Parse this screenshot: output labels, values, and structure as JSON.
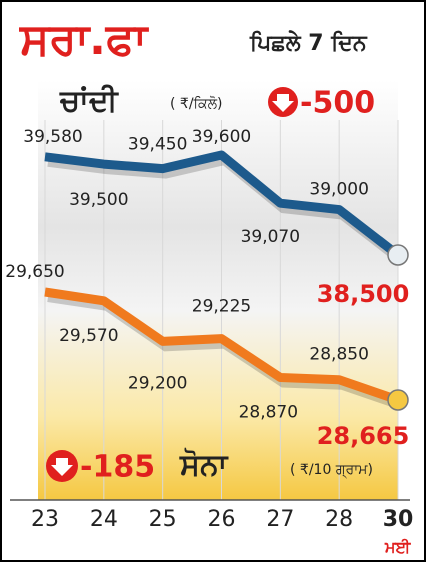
{
  "title": "ਸਰਾ.ਫਾ",
  "subtitle": "ਪਿਛਲੇ 7 ਦਿਨ",
  "chart_data": {
    "type": "line",
    "categories": [
      "23",
      "24",
      "25",
      "26",
      "27",
      "28",
      "30"
    ],
    "x_note": "ਮਈ",
    "series": [
      {
        "name": "ਚਾਂਦੀ",
        "unit": "( ₹/ਕਿਲੋ)",
        "change": -500,
        "color": "#1d5a8c",
        "values": [
          39580,
          39500,
          39450,
          39600,
          39070,
          39000,
          38500
        ],
        "value_labels": [
          "39,580",
          "39,500",
          "39,450",
          "39,600",
          "39,070",
          "39,000",
          "38,500"
        ]
      },
      {
        "name": "ਸੋਨਾ",
        "unit": "( ₹/10 ਗ੍ਰਾਮ)",
        "change": -185,
        "color": "#f07a1e",
        "values": [
          29650,
          29570,
          29200,
          29225,
          28870,
          28850,
          28665
        ],
        "value_labels": [
          "29,650",
          "29,570",
          "29,200",
          "29,225",
          "28,870",
          "28,850",
          "28,665"
        ]
      }
    ]
  }
}
